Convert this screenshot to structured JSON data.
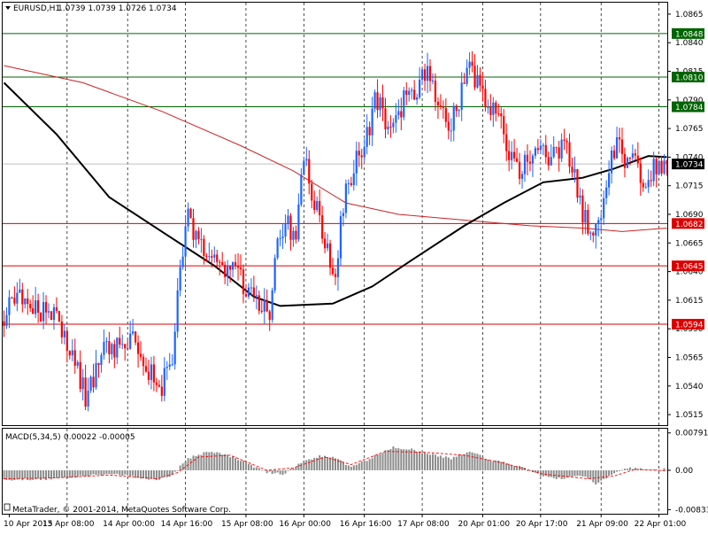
{
  "header": {
    "symbol_label": "EURUSD,H1",
    "ohlc": "1.0739 1.0739 1.0726 1.0734"
  },
  "macd": {
    "label": "MACD(5,34,5)",
    "values": "0.00022 -0.00005"
  },
  "copyright": "MetaTrader, © 2001-2014, MetaQuotes Software Corp.",
  "colors": {
    "bull_candle": "#1e64ff",
    "bear_candle": "#ff0000",
    "support_line": "#dd0000",
    "resistance_line": "#006400",
    "ma_fast": "#000000",
    "ma_slow": "#cc2222",
    "macd_hist": "#8c8c8c",
    "macd_signal": "#ff0000",
    "current_price_line": "#c0c0c0"
  },
  "chart_data": [
    {
      "type": "candlestick",
      "symbol": "EURUSD",
      "timeframe": "H1",
      "y_ticks": [
        "1.0865",
        "1.0840",
        "1.0815",
        "1.0790",
        "1.0765",
        "1.0740",
        "1.0715",
        "1.0690",
        "1.0665",
        "1.0640",
        "1.0615",
        "1.0590",
        "1.0565",
        "1.0540",
        "1.0515"
      ],
      "y_range": [
        1.0505,
        1.0875
      ],
      "x_ticks": [
        "10 Apr 2015",
        "13 Apr 08:00",
        "14 Apr 00:00",
        "14 Apr 16:00",
        "15 Apr 08:00",
        "16 Apr 00:00",
        "16 Apr 16:00",
        "17 Apr 08:00",
        "20 Apr 01:00",
        "20 Apr 17:00",
        "21 Apr 09:00",
        "22 Apr 01:00"
      ],
      "current_price": "1.0734",
      "resistance_levels": [
        "1.0848",
        "1.0810",
        "1.0784"
      ],
      "support_levels": [
        "1.0682",
        "1.0645",
        "1.0594"
      ],
      "price_path": [
        [
          0,
          1.06
        ],
        [
          6,
          1.062
        ],
        [
          12,
          1.0605
        ],
        [
          17,
          1.061
        ],
        [
          22,
          1.0585
        ],
        [
          27,
          1.056
        ],
        [
          31,
          1.0532
        ],
        [
          34,
          1.054
        ],
        [
          38,
          1.058
        ],
        [
          44,
          1.057
        ],
        [
          48,
          1.058
        ],
        [
          52,
          1.0575
        ],
        [
          56,
          1.0548
        ],
        [
          60,
          1.054
        ],
        [
          64,
          1.056
        ],
        [
          67,
          1.064
        ],
        [
          70,
          1.0685
        ],
        [
          74,
          1.066
        ],
        [
          80,
          1.065
        ],
        [
          86,
          1.064
        ],
        [
          91,
          1.063
        ],
        [
          97,
          1.061
        ],
        [
          101,
          1.0605
        ],
        [
          104,
          1.066
        ],
        [
          108,
          1.068
        ],
        [
          111,
          1.0675
        ],
        [
          114,
          1.074
        ],
        [
          118,
          1.07
        ],
        [
          123,
          1.066
        ],
        [
          126,
          1.0635
        ],
        [
          129,
          1.07
        ],
        [
          133,
          1.073
        ],
        [
          137,
          1.075
        ],
        [
          141,
          1.079
        ],
        [
          145,
          1.0775
        ],
        [
          149,
          1.077
        ],
        [
          153,
          1.08
        ],
        [
          157,
          1.079
        ],
        [
          161,
          1.0825
        ],
        [
          165,
          1.079
        ],
        [
          169,
          1.0765
        ],
        [
          173,
          1.079
        ],
        [
          177,
          1.0815
        ],
        [
          181,
          1.08
        ],
        [
          185,
          1.0785
        ],
        [
          189,
          1.0765
        ],
        [
          193,
          1.0735
        ],
        [
          197,
          1.073
        ],
        [
          201,
          1.0745
        ],
        [
          205,
          1.074
        ],
        [
          209,
          1.0738
        ],
        [
          213,
          1.075
        ],
        [
          217,
          1.0725
        ],
        [
          220,
          1.069
        ],
        [
          223,
          1.0672
        ],
        [
          226,
          1.0685
        ],
        [
          229,
          1.0715
        ],
        [
          232,
          1.075
        ],
        [
          236,
          1.074
        ],
        [
          240,
          1.0735
        ],
        [
          244,
          1.072
        ],
        [
          248,
          1.0732
        ],
        [
          252,
          1.0734
        ]
      ],
      "ma_fast_path": [
        [
          0,
          1.0805
        ],
        [
          20,
          1.076
        ],
        [
          40,
          1.0705
        ],
        [
          60,
          1.0675
        ],
        [
          80,
          1.0645
        ],
        [
          95,
          1.0618
        ],
        [
          105,
          1.061
        ],
        [
          125,
          1.0612
        ],
        [
          140,
          1.0627
        ],
        [
          155,
          1.065
        ],
        [
          175,
          1.068
        ],
        [
          190,
          1.07
        ],
        [
          205,
          1.0718
        ],
        [
          220,
          1.0722
        ],
        [
          232,
          1.073
        ],
        [
          245,
          1.0741
        ],
        [
          252,
          1.074
        ]
      ],
      "ma_slow_path": [
        [
          0,
          1.082
        ],
        [
          30,
          1.0805
        ],
        [
          60,
          1.078
        ],
        [
          90,
          1.075
        ],
        [
          110,
          1.0728
        ],
        [
          130,
          1.07
        ],
        [
          150,
          1.069
        ],
        [
          175,
          1.0685
        ],
        [
          200,
          1.068
        ],
        [
          220,
          1.0678
        ],
        [
          235,
          1.0675
        ],
        [
          252,
          1.0678
        ]
      ]
    },
    {
      "type": "bar",
      "name": "MACD(5,34,5)",
      "y_ticks": [
        "0.00791",
        "0.00",
        "-0.00833"
      ],
      "y_range": [
        -0.0092,
        0.0088
      ],
      "histogram_path": [
        [
          0,
          -0.002
        ],
        [
          15,
          -0.0019
        ],
        [
          30,
          -0.0012
        ],
        [
          40,
          -0.0008
        ],
        [
          50,
          -0.0014
        ],
        [
          58,
          -0.002
        ],
        [
          64,
          -0.001
        ],
        [
          70,
          0.0025
        ],
        [
          78,
          0.004
        ],
        [
          86,
          0.003
        ],
        [
          95,
          0.0008
        ],
        [
          100,
          -0.0004
        ],
        [
          106,
          -0.0008
        ],
        [
          114,
          0.0018
        ],
        [
          120,
          0.003
        ],
        [
          126,
          0.0028
        ],
        [
          131,
          0.0008
        ],
        [
          138,
          0.0022
        ],
        [
          148,
          0.0048
        ],
        [
          155,
          0.0045
        ],
        [
          163,
          0.0032
        ],
        [
          170,
          0.0025
        ],
        [
          177,
          0.004
        ],
        [
          185,
          0.0022
        ],
        [
          195,
          0.001
        ],
        [
          205,
          -0.0012
        ],
        [
          210,
          -0.0018
        ],
        [
          220,
          -0.0012
        ],
        [
          225,
          -0.0028
        ],
        [
          232,
          -0.0008
        ],
        [
          237,
          0.0005
        ],
        [
          245,
          0.0001
        ],
        [
          252,
          0.0002
        ]
      ],
      "signal_path": [
        [
          0,
          -0.0018
        ],
        [
          20,
          -0.0016
        ],
        [
          40,
          -0.001
        ],
        [
          58,
          -0.0018
        ],
        [
          66,
          -0.0005
        ],
        [
          74,
          0.0028
        ],
        [
          86,
          0.0032
        ],
        [
          100,
          0.0
        ],
        [
          110,
          0.0005
        ],
        [
          122,
          0.0028
        ],
        [
          132,
          0.0012
        ],
        [
          145,
          0.004
        ],
        [
          160,
          0.0038
        ],
        [
          175,
          0.0032
        ],
        [
          190,
          0.0015
        ],
        [
          205,
          -0.0008
        ],
        [
          222,
          -0.0018
        ],
        [
          232,
          -0.0012
        ],
        [
          240,
          0.0002
        ],
        [
          252,
          -0.0001
        ]
      ]
    }
  ]
}
